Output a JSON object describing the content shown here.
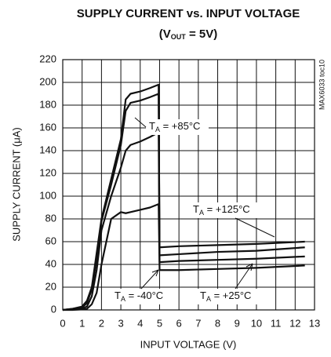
{
  "chart_data": {
    "type": "line",
    "title": "SUPPLY CURRENT  vs. INPUT VOLTAGE",
    "subtitle": {
      "base": "(V",
      "sub": "OUT",
      "text": " = 5V)"
    },
    "side_note": "MAX6033 toc10",
    "x_label": "INPUT VOLTAGE (V)",
    "y_label": "SUPPLY CURRENT (μA)",
    "x": [
      0,
      0.5,
      1,
      1.25,
      1.5,
      1.75,
      2,
      2.5,
      3,
      3.25,
      3.5,
      4,
      4.5,
      4.95,
      5,
      6,
      8,
      10,
      12.5
    ],
    "series": [
      {
        "name": "+125°C",
        "color": "#111111",
        "values": [
          0,
          1,
          3,
          8,
          20,
          50,
          80,
          115,
          150,
          185,
          190,
          192,
          195,
          198,
          55,
          56,
          57,
          58,
          60
        ]
      },
      {
        "name": "+85°C",
        "color": "#111111",
        "values": [
          0,
          1,
          2,
          6,
          18,
          45,
          78,
          110,
          145,
          175,
          182,
          184,
          187,
          190,
          48,
          49,
          51,
          52,
          55
        ]
      },
      {
        "name": "+25°C",
        "color": "#111111",
        "values": [
          0,
          0.5,
          1,
          3,
          12,
          35,
          70,
          100,
          125,
          140,
          145,
          148,
          152,
          156,
          42,
          43,
          44,
          45,
          47
        ]
      },
      {
        "name": "-40°C",
        "color": "#111111",
        "values": [
          0,
          0,
          0.5,
          1,
          5,
          15,
          40,
          80,
          86,
          85,
          86,
          88,
          90,
          93,
          35,
          35,
          36,
          37,
          39
        ]
      }
    ],
    "annotations": [
      {
        "base": "T",
        "sub": "A",
        "text": " = +85°C"
      },
      {
        "base": "T",
        "sub": "A",
        "text": " = +125°C"
      },
      {
        "base": "T",
        "sub": "A",
        "text": " = -40°C"
      },
      {
        "base": "T",
        "sub": "A",
        "text": " = +25°C"
      }
    ],
    "xlim": [
      0,
      13
    ],
    "xticks": [
      0,
      1,
      2,
      3,
      4,
      5,
      6,
      7,
      8,
      9,
      10,
      11,
      12,
      13
    ],
    "ylim": [
      0,
      220
    ],
    "yticks": [
      0,
      20,
      40,
      60,
      80,
      100,
      120,
      140,
      160,
      180,
      200,
      220
    ],
    "grid": true
  }
}
